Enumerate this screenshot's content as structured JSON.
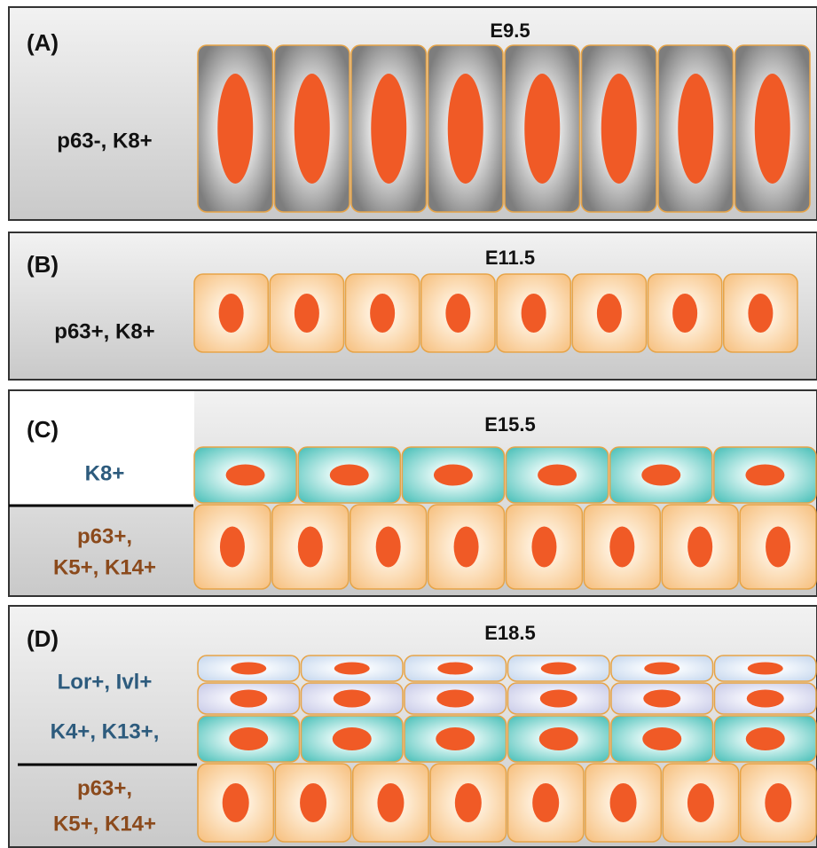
{
  "panels": [
    {
      "label": "(A)",
      "stage": "E9.5",
      "markers": [
        {
          "lines": [
            "p63-, K8+"
          ]
        }
      ]
    },
    {
      "label": "(B)",
      "stage": "E11.5",
      "markers": [
        {
          "lines": [
            "p63+, K8+"
          ]
        }
      ]
    },
    {
      "label": "(C)",
      "stage": "E15.5",
      "markers": [
        {
          "lines": [
            "K8+"
          ]
        },
        {
          "lines": [
            "p63+,",
            "K5+, K14+"
          ]
        }
      ]
    },
    {
      "label": "(D)",
      "stage": "E18.5",
      "markers": [
        {
          "lines": [
            "Lor+, Ivl+",
            "K4+, K13+,"
          ]
        },
        {
          "lines": [
            "p63+,",
            "K5+, K14+"
          ]
        }
      ]
    }
  ]
}
